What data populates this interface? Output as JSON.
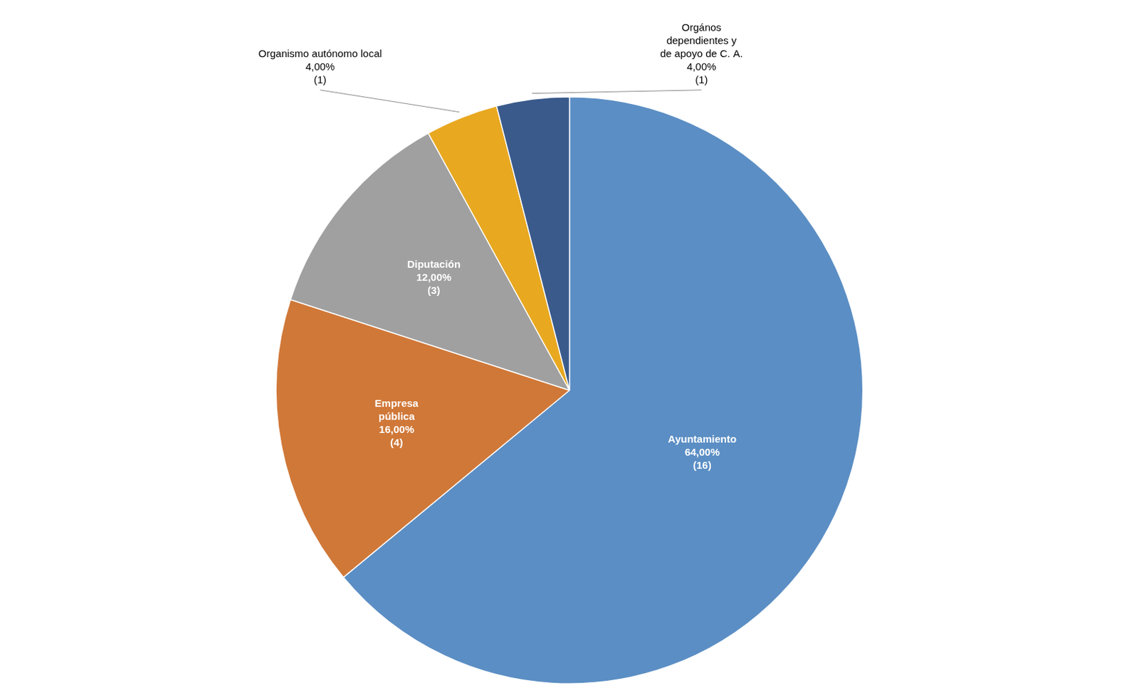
{
  "chart_data": {
    "type": "pie",
    "categories": [
      "Ayuntamiento",
      "Empresa\npública",
      "Diputación",
      "Organismo autónomo local",
      "Orgános\ndependientes y\nde apoyo de C. A."
    ],
    "values": [
      64,
      16,
      12,
      4,
      4
    ],
    "value_labels": [
      "64,00%",
      "16,00%",
      "12,00%",
      "4,00%",
      "4,00%"
    ],
    "count_labels": [
      "(16)",
      "(4)",
      "(3)",
      "(1)",
      "(1)"
    ],
    "colors": [
      "#5b8ec4",
      "#d07838",
      "#a0a0a0",
      "#e8a820",
      "#3a5a8c"
    ],
    "data_labels": true,
    "legend": false
  }
}
